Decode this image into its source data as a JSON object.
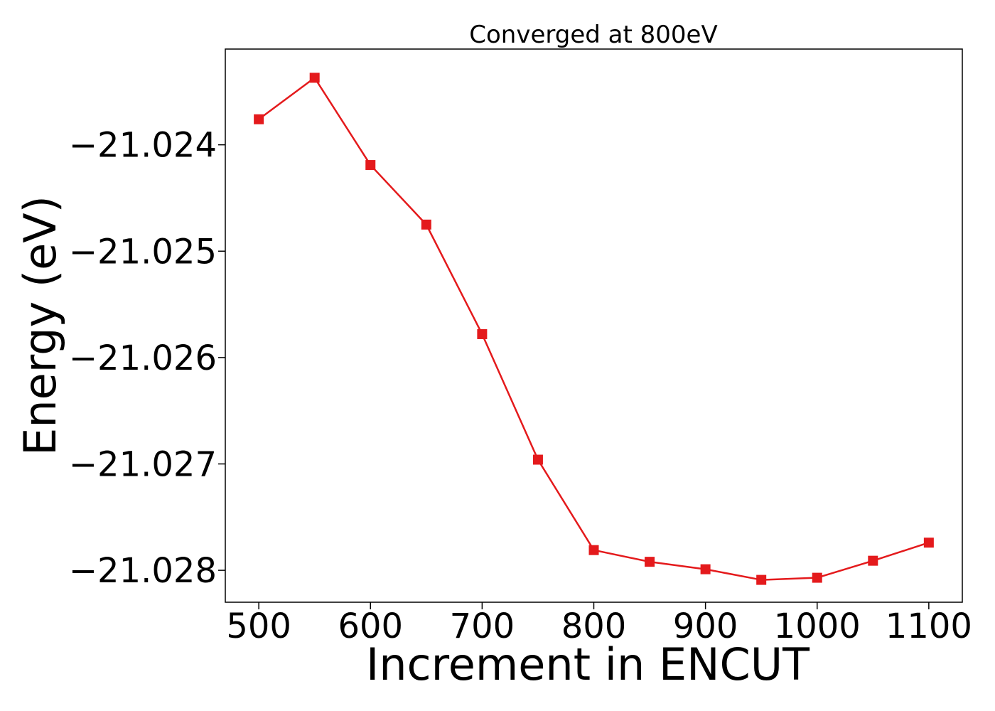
{
  "chart_data": {
    "type": "line",
    "title": "Converged at 800eV",
    "xlabel": "Increment in ENCUT",
    "ylabel": "Energy (eV)",
    "x": [
      500,
      550,
      600,
      650,
      700,
      750,
      800,
      850,
      900,
      950,
      1000,
      1050,
      1100
    ],
    "series": [
      {
        "values": [
          -21.02376,
          -21.02337,
          -21.02419,
          -21.02475,
          -21.02578,
          -21.02696,
          -21.02781,
          -21.02792,
          -21.02799,
          -21.02809,
          -21.02807,
          -21.02791,
          -21.02774
        ],
        "color": "#e41a1c",
        "marker": "square"
      }
    ],
    "xticks": [
      500,
      600,
      700,
      800,
      900,
      1000,
      1100
    ],
    "xtick_labels": [
      "500",
      "600",
      "700",
      "800",
      "900",
      "1000",
      "1100"
    ],
    "yticks": [
      -21.024,
      -21.025,
      -21.026,
      -21.027,
      -21.028
    ],
    "ytick_labels": [
      "−21.024",
      "−21.025",
      "−21.026",
      "−21.027",
      "−21.028"
    ],
    "xlim": [
      470,
      1130
    ],
    "ylim": [
      -21.0283,
      -21.0231
    ],
    "grid": false,
    "legend": "none"
  }
}
